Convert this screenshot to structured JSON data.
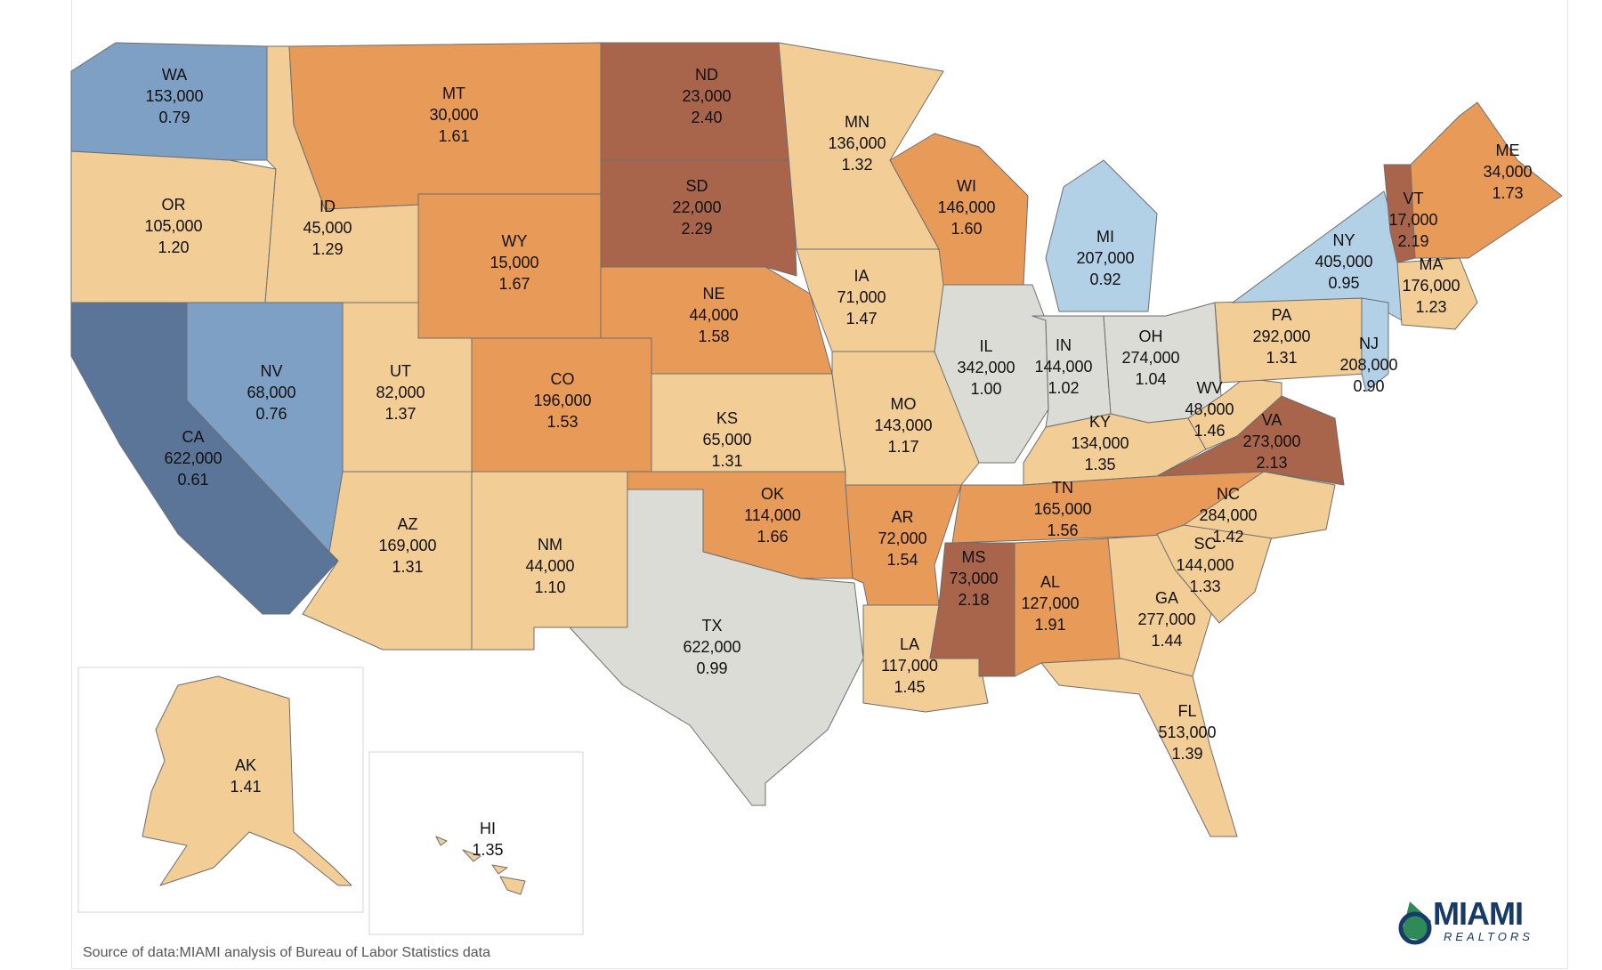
{
  "source": "Source of data:MIAMI analysis of Bureau of Labor Statistics data",
  "logo": {
    "word": "MIAMI",
    "sub": "REALTORS"
  },
  "colors": {
    "lowest": "#5a7598",
    "low": "#7da0c4",
    "lighter_low": "#b2d0e6",
    "neutral": "#dcdcd6",
    "mid": "#f3cd96",
    "high": "#e89a59",
    "highest": "#a9644c"
  },
  "states": [
    {
      "code": "WA",
      "jobs": "153,000",
      "ratio": "0.79"
    },
    {
      "code": "OR",
      "jobs": "105,000",
      "ratio": "1.20"
    },
    {
      "code": "CA",
      "jobs": "622,000",
      "ratio": "0.61"
    },
    {
      "code": "NV",
      "jobs": "68,000",
      "ratio": "0.76"
    },
    {
      "code": "ID",
      "jobs": "45,000",
      "ratio": "1.29"
    },
    {
      "code": "MT",
      "jobs": "30,000",
      "ratio": "1.61"
    },
    {
      "code": "WY",
      "jobs": "15,000",
      "ratio": "1.67"
    },
    {
      "code": "UT",
      "jobs": "82,000",
      "ratio": "1.37"
    },
    {
      "code": "AZ",
      "jobs": "169,000",
      "ratio": "1.31"
    },
    {
      "code": "CO",
      "jobs": "196,000",
      "ratio": "1.53"
    },
    {
      "code": "NM",
      "jobs": "44,000",
      "ratio": "1.10"
    },
    {
      "code": "ND",
      "jobs": "23,000",
      "ratio": "2.40"
    },
    {
      "code": "SD",
      "jobs": "22,000",
      "ratio": "2.29"
    },
    {
      "code": "NE",
      "jobs": "44,000",
      "ratio": "1.58"
    },
    {
      "code": "KS",
      "jobs": "65,000",
      "ratio": "1.31"
    },
    {
      "code": "OK",
      "jobs": "114,000",
      "ratio": "1.66"
    },
    {
      "code": "TX",
      "jobs": "622,000",
      "ratio": "0.99"
    },
    {
      "code": "MN",
      "jobs": "136,000",
      "ratio": "1.32"
    },
    {
      "code": "IA",
      "jobs": "71,000",
      "ratio": "1.47"
    },
    {
      "code": "MO",
      "jobs": "143,000",
      "ratio": "1.17"
    },
    {
      "code": "AR",
      "jobs": "72,000",
      "ratio": "1.54"
    },
    {
      "code": "LA",
      "jobs": "117,000",
      "ratio": "1.45"
    },
    {
      "code": "WI",
      "jobs": "146,000",
      "ratio": "1.60"
    },
    {
      "code": "IL",
      "jobs": "342,000",
      "ratio": "1.00"
    },
    {
      "code": "MI",
      "jobs": "207,000",
      "ratio": "0.92"
    },
    {
      "code": "IN",
      "jobs": "144,000",
      "ratio": "1.02"
    },
    {
      "code": "OH",
      "jobs": "274,000",
      "ratio": "1.04"
    },
    {
      "code": "KY",
      "jobs": "134,000",
      "ratio": "1.35"
    },
    {
      "code": "TN",
      "jobs": "165,000",
      "ratio": "1.56"
    },
    {
      "code": "MS",
      "jobs": "73,000",
      "ratio": "2.18"
    },
    {
      "code": "AL",
      "jobs": "127,000",
      "ratio": "1.91"
    },
    {
      "code": "GA",
      "jobs": "277,000",
      "ratio": "1.44"
    },
    {
      "code": "FL",
      "jobs": "513,000",
      "ratio": "1.39"
    },
    {
      "code": "SC",
      "jobs": "144,000",
      "ratio": "1.33"
    },
    {
      "code": "NC",
      "jobs": "284,000",
      "ratio": "1.42"
    },
    {
      "code": "VA",
      "jobs": "273,000",
      "ratio": "2.13"
    },
    {
      "code": "WV",
      "jobs": "48,000",
      "ratio": "1.46"
    },
    {
      "code": "PA",
      "jobs": "292,000",
      "ratio": "1.31"
    },
    {
      "code": "NY",
      "jobs": "405,000",
      "ratio": "0.95"
    },
    {
      "code": "NJ",
      "jobs": "208,000",
      "ratio": "0.90"
    },
    {
      "code": "VT",
      "jobs": "17,000",
      "ratio": "2.19"
    },
    {
      "code": "MA",
      "jobs": "176,000",
      "ratio": "1.23"
    },
    {
      "code": "ME",
      "jobs": "34,000",
      "ratio": "1.73"
    },
    {
      "code": "AK",
      "jobs": "",
      "ratio": "1.41"
    },
    {
      "code": "HI",
      "jobs": "",
      "ratio": "1.35"
    }
  ]
}
